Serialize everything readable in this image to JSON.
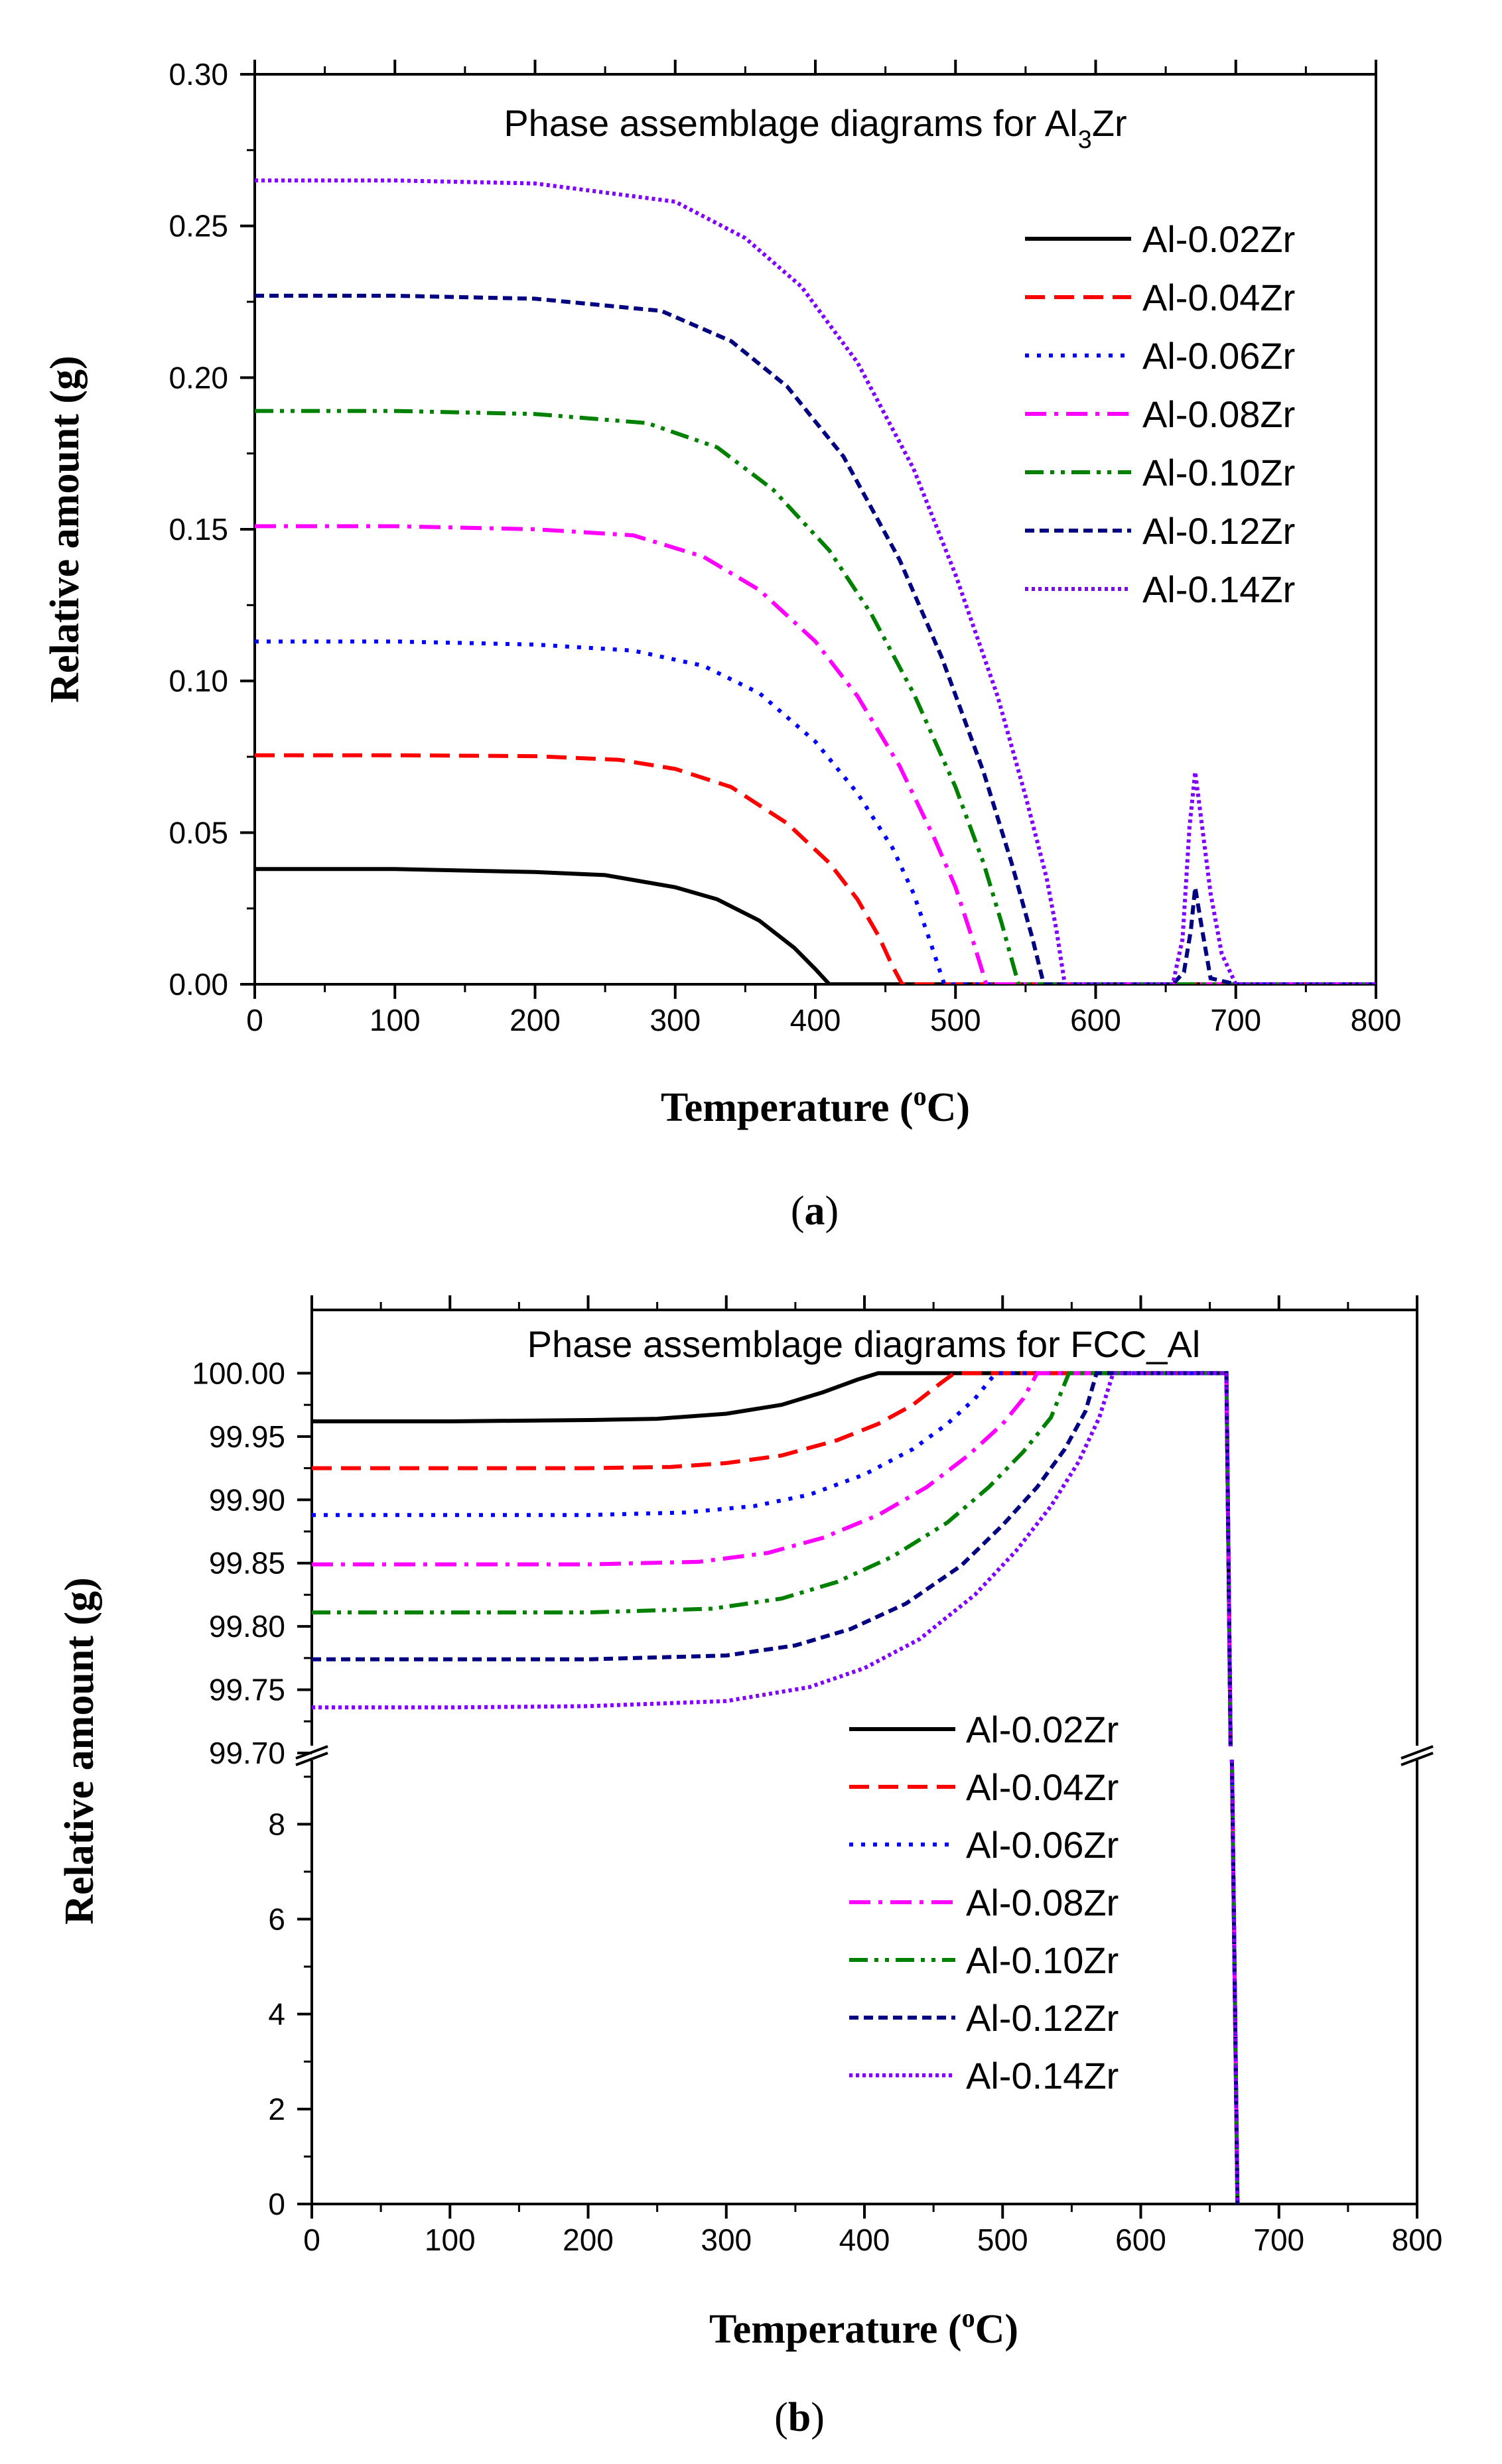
{
  "colors": {
    "Al-0.02Zr": "#000000",
    "Al-0.04Zr": "#ff0000",
    "Al-0.06Zr": "#0000ff",
    "Al-0.08Zr": "#ff00ff",
    "Al-0.10Zr": "#008000",
    "Al-0.12Zr": "#000080",
    "Al-0.14Zr": "#8000ff"
  },
  "chart_data": [
    {
      "type": "line",
      "panel_label": "a",
      "title": "Phase assemblage diagrams for Al",
      "title_subscript": "3",
      "title_suffix": "Zr",
      "xlabel_pre": "Temperature (",
      "xlabel_sup": "o",
      "xlabel_post": "C)",
      "ylabel": "Relative amount (g)",
      "xlim": [
        0,
        800
      ],
      "ylim": [
        0,
        0.3
      ],
      "x_ticks": [
        "0",
        "100",
        "200",
        "300",
        "400",
        "500",
        "600",
        "700",
        "800"
      ],
      "y_ticks": [
        "0.00",
        "0.05",
        "0.10",
        "0.15",
        "0.20",
        "0.25",
        "0.30"
      ],
      "legend_location": "right",
      "series": [
        {
          "name": "Al-0.02Zr",
          "style": "solid",
          "x": [
            0,
            100,
            200,
            250,
            300,
            330,
            360,
            385,
            400,
            410,
            600,
            660,
            670,
            680,
            700,
            800
          ],
          "y": [
            0.038,
            0.038,
            0.037,
            0.036,
            0.032,
            0.028,
            0.021,
            0.012,
            0.005,
            0,
            0,
            0,
            0,
            0,
            0,
            0
          ]
        },
        {
          "name": "Al-0.04Zr",
          "style": "dash",
          "x": [
            0,
            100,
            200,
            260,
            300,
            340,
            380,
            410,
            430,
            445,
            455,
            462,
            660,
            700,
            800
          ],
          "y": [
            0.0755,
            0.0755,
            0.0752,
            0.074,
            0.071,
            0.065,
            0.053,
            0.04,
            0.028,
            0.016,
            0.006,
            0,
            0,
            0,
            0
          ]
        },
        {
          "name": "Al-0.06Zr",
          "style": "dot",
          "x": [
            0,
            100,
            200,
            270,
            320,
            360,
            400,
            430,
            455,
            470,
            482,
            492,
            660,
            700,
            800
          ],
          "y": [
            0.113,
            0.113,
            0.112,
            0.11,
            0.105,
            0.096,
            0.08,
            0.063,
            0.045,
            0.03,
            0.014,
            0,
            0,
            0,
            0
          ]
        },
        {
          "name": "Al-0.08Zr",
          "style": "dashdot",
          "x": [
            0,
            100,
            200,
            270,
            320,
            360,
            400,
            430,
            460,
            485,
            500,
            512,
            522,
            660,
            700,
            800
          ],
          "y": [
            0.151,
            0.151,
            0.15,
            0.148,
            0.141,
            0.13,
            0.113,
            0.095,
            0.072,
            0.048,
            0.032,
            0.015,
            0,
            0,
            0,
            0
          ]
        },
        {
          "name": "Al-0.10Zr",
          "style": "dashdotdot",
          "x": [
            0,
            100,
            200,
            280,
            330,
            370,
            410,
            440,
            470,
            500,
            520,
            533,
            545,
            660,
            700,
            800
          ],
          "y": [
            0.189,
            0.189,
            0.188,
            0.185,
            0.177,
            0.163,
            0.143,
            0.122,
            0.096,
            0.065,
            0.04,
            0.02,
            0,
            0,
            0,
            0
          ]
        },
        {
          "name": "Al-0.12Zr",
          "style": "shortdash",
          "x": [
            0,
            100,
            200,
            290,
            340,
            380,
            420,
            460,
            490,
            520,
            540,
            555,
            563,
            655,
            663,
            668,
            671,
            676,
            682,
            700,
            800
          ],
          "y": [
            0.227,
            0.227,
            0.226,
            0.222,
            0.212,
            0.197,
            0.174,
            0.14,
            0.108,
            0.07,
            0.04,
            0.015,
            0,
            0,
            0.004,
            0.018,
            0.032,
            0.018,
            0.002,
            0,
            0
          ]
        },
        {
          "name": "Al-0.14Zr",
          "style": "densedot",
          "x": [
            0,
            100,
            200,
            300,
            350,
            390,
            430,
            470,
            500,
            530,
            550,
            565,
            572,
            578,
            655,
            662,
            667,
            671,
            676,
            682,
            690,
            700,
            800
          ],
          "y": [
            0.265,
            0.265,
            0.264,
            0.258,
            0.246,
            0.23,
            0.205,
            0.17,
            0.135,
            0.095,
            0.062,
            0.035,
            0.018,
            0,
            0,
            0.015,
            0.052,
            0.07,
            0.052,
            0.03,
            0.01,
            0,
            0
          ]
        }
      ],
      "legend": [
        "Al-0.02Zr",
        "Al-0.04Zr",
        "Al-0.06Zr",
        "Al-0.08Zr",
        "Al-0.10Zr",
        "Al-0.12Zr",
        "Al-0.14Zr"
      ]
    },
    {
      "type": "line",
      "panel_label": "b",
      "title": "Phase assemblage diagrams for FCC_Al",
      "xlabel_pre": "Temperature (",
      "xlabel_sup": "o",
      "xlabel_post": "C)",
      "ylabel": "Relative amount (g)",
      "xlim": [
        0,
        800
      ],
      "y_axis_break": true,
      "upper_ylim": [
        99.7,
        100.05
      ],
      "lower_ylim": [
        0,
        9.5
      ],
      "x_ticks": [
        "0",
        "100",
        "200",
        "300",
        "400",
        "500",
        "600",
        "700",
        "800"
      ],
      "y_ticks_upper": [
        "99.70",
        "99.75",
        "99.80",
        "99.85",
        "99.90",
        "99.95",
        "100.00"
      ],
      "y_ticks_lower": [
        "0",
        "2",
        "4",
        "6",
        "8"
      ],
      "legend_location": "lower-right",
      "series": [
        {
          "name": "Al-0.02Zr",
          "style": "solid",
          "x": [
            0,
            100,
            200,
            250,
            300,
            340,
            370,
            395,
            410,
            500,
            600,
            662
          ],
          "y": [
            99.962,
            99.962,
            99.963,
            99.964,
            99.968,
            99.975,
            99.985,
            99.995,
            100.0,
            100.0,
            100.0,
            100.0
          ]
        },
        {
          "name": "Al-0.04Zr",
          "style": "dash",
          "x": [
            0,
            100,
            200,
            260,
            300,
            340,
            380,
            410,
            435,
            455,
            465,
            600,
            662
          ],
          "y": [
            99.925,
            99.925,
            99.925,
            99.926,
            99.929,
            99.935,
            99.947,
            99.96,
            99.975,
            99.992,
            100.0,
            100.0,
            100.0
          ]
        },
        {
          "name": "Al-0.06Zr",
          "style": "dot",
          "x": [
            0,
            100,
            200,
            270,
            320,
            360,
            400,
            435,
            460,
            480,
            495,
            600,
            662
          ],
          "y": [
            99.888,
            99.888,
            99.888,
            99.89,
            99.895,
            99.904,
            99.92,
            99.94,
            99.96,
            99.98,
            100.0,
            100.0,
            100.0
          ]
        },
        {
          "name": "Al-0.08Zr",
          "style": "dashdot",
          "x": [
            0,
            100,
            200,
            280,
            330,
            370,
            410,
            445,
            475,
            500,
            515,
            525,
            600,
            662
          ],
          "y": [
            99.849,
            99.849,
            99.849,
            99.851,
            99.858,
            99.87,
            99.888,
            99.91,
            99.935,
            99.96,
            99.98,
            100.0,
            100.0,
            100.0
          ]
        },
        {
          "name": "Al-0.10Zr",
          "style": "dashdotdot",
          "x": [
            0,
            100,
            200,
            290,
            340,
            380,
            420,
            460,
            490,
            515,
            535,
            548,
            600,
            662
          ],
          "y": [
            99.811,
            99.811,
            99.811,
            99.814,
            99.822,
            99.835,
            99.855,
            99.882,
            99.91,
            99.938,
            99.965,
            100.0,
            100.0,
            100.0
          ]
        },
        {
          "name": "Al-0.12Zr",
          "style": "shortdash",
          "x": [
            0,
            100,
            200,
            300,
            350,
            390,
            430,
            470,
            500,
            525,
            545,
            560,
            568,
            600,
            662
          ],
          "y": [
            99.774,
            99.774,
            99.774,
            99.777,
            99.785,
            99.798,
            99.818,
            99.848,
            99.88,
            99.91,
            99.94,
            99.97,
            100.0,
            100.0,
            100.0
          ]
        },
        {
          "name": "Al-0.14Zr",
          "style": "densedot",
          "x": [
            0,
            100,
            200,
            300,
            360,
            400,
            440,
            480,
            510,
            535,
            555,
            570,
            580,
            600,
            662
          ],
          "y": [
            99.736,
            99.736,
            99.737,
            99.741,
            99.752,
            99.767,
            99.79,
            99.825,
            99.86,
            99.895,
            99.93,
            99.965,
            100.0,
            100.0,
            100.0
          ]
        }
      ],
      "drop": {
        "x_start": 662,
        "x_end": 670,
        "y_end": 0
      },
      "legend": [
        "Al-0.02Zr",
        "Al-0.04Zr",
        "Al-0.06Zr",
        "Al-0.08Zr",
        "Al-0.10Zr",
        "Al-0.12Zr",
        "Al-0.14Zr"
      ]
    }
  ]
}
